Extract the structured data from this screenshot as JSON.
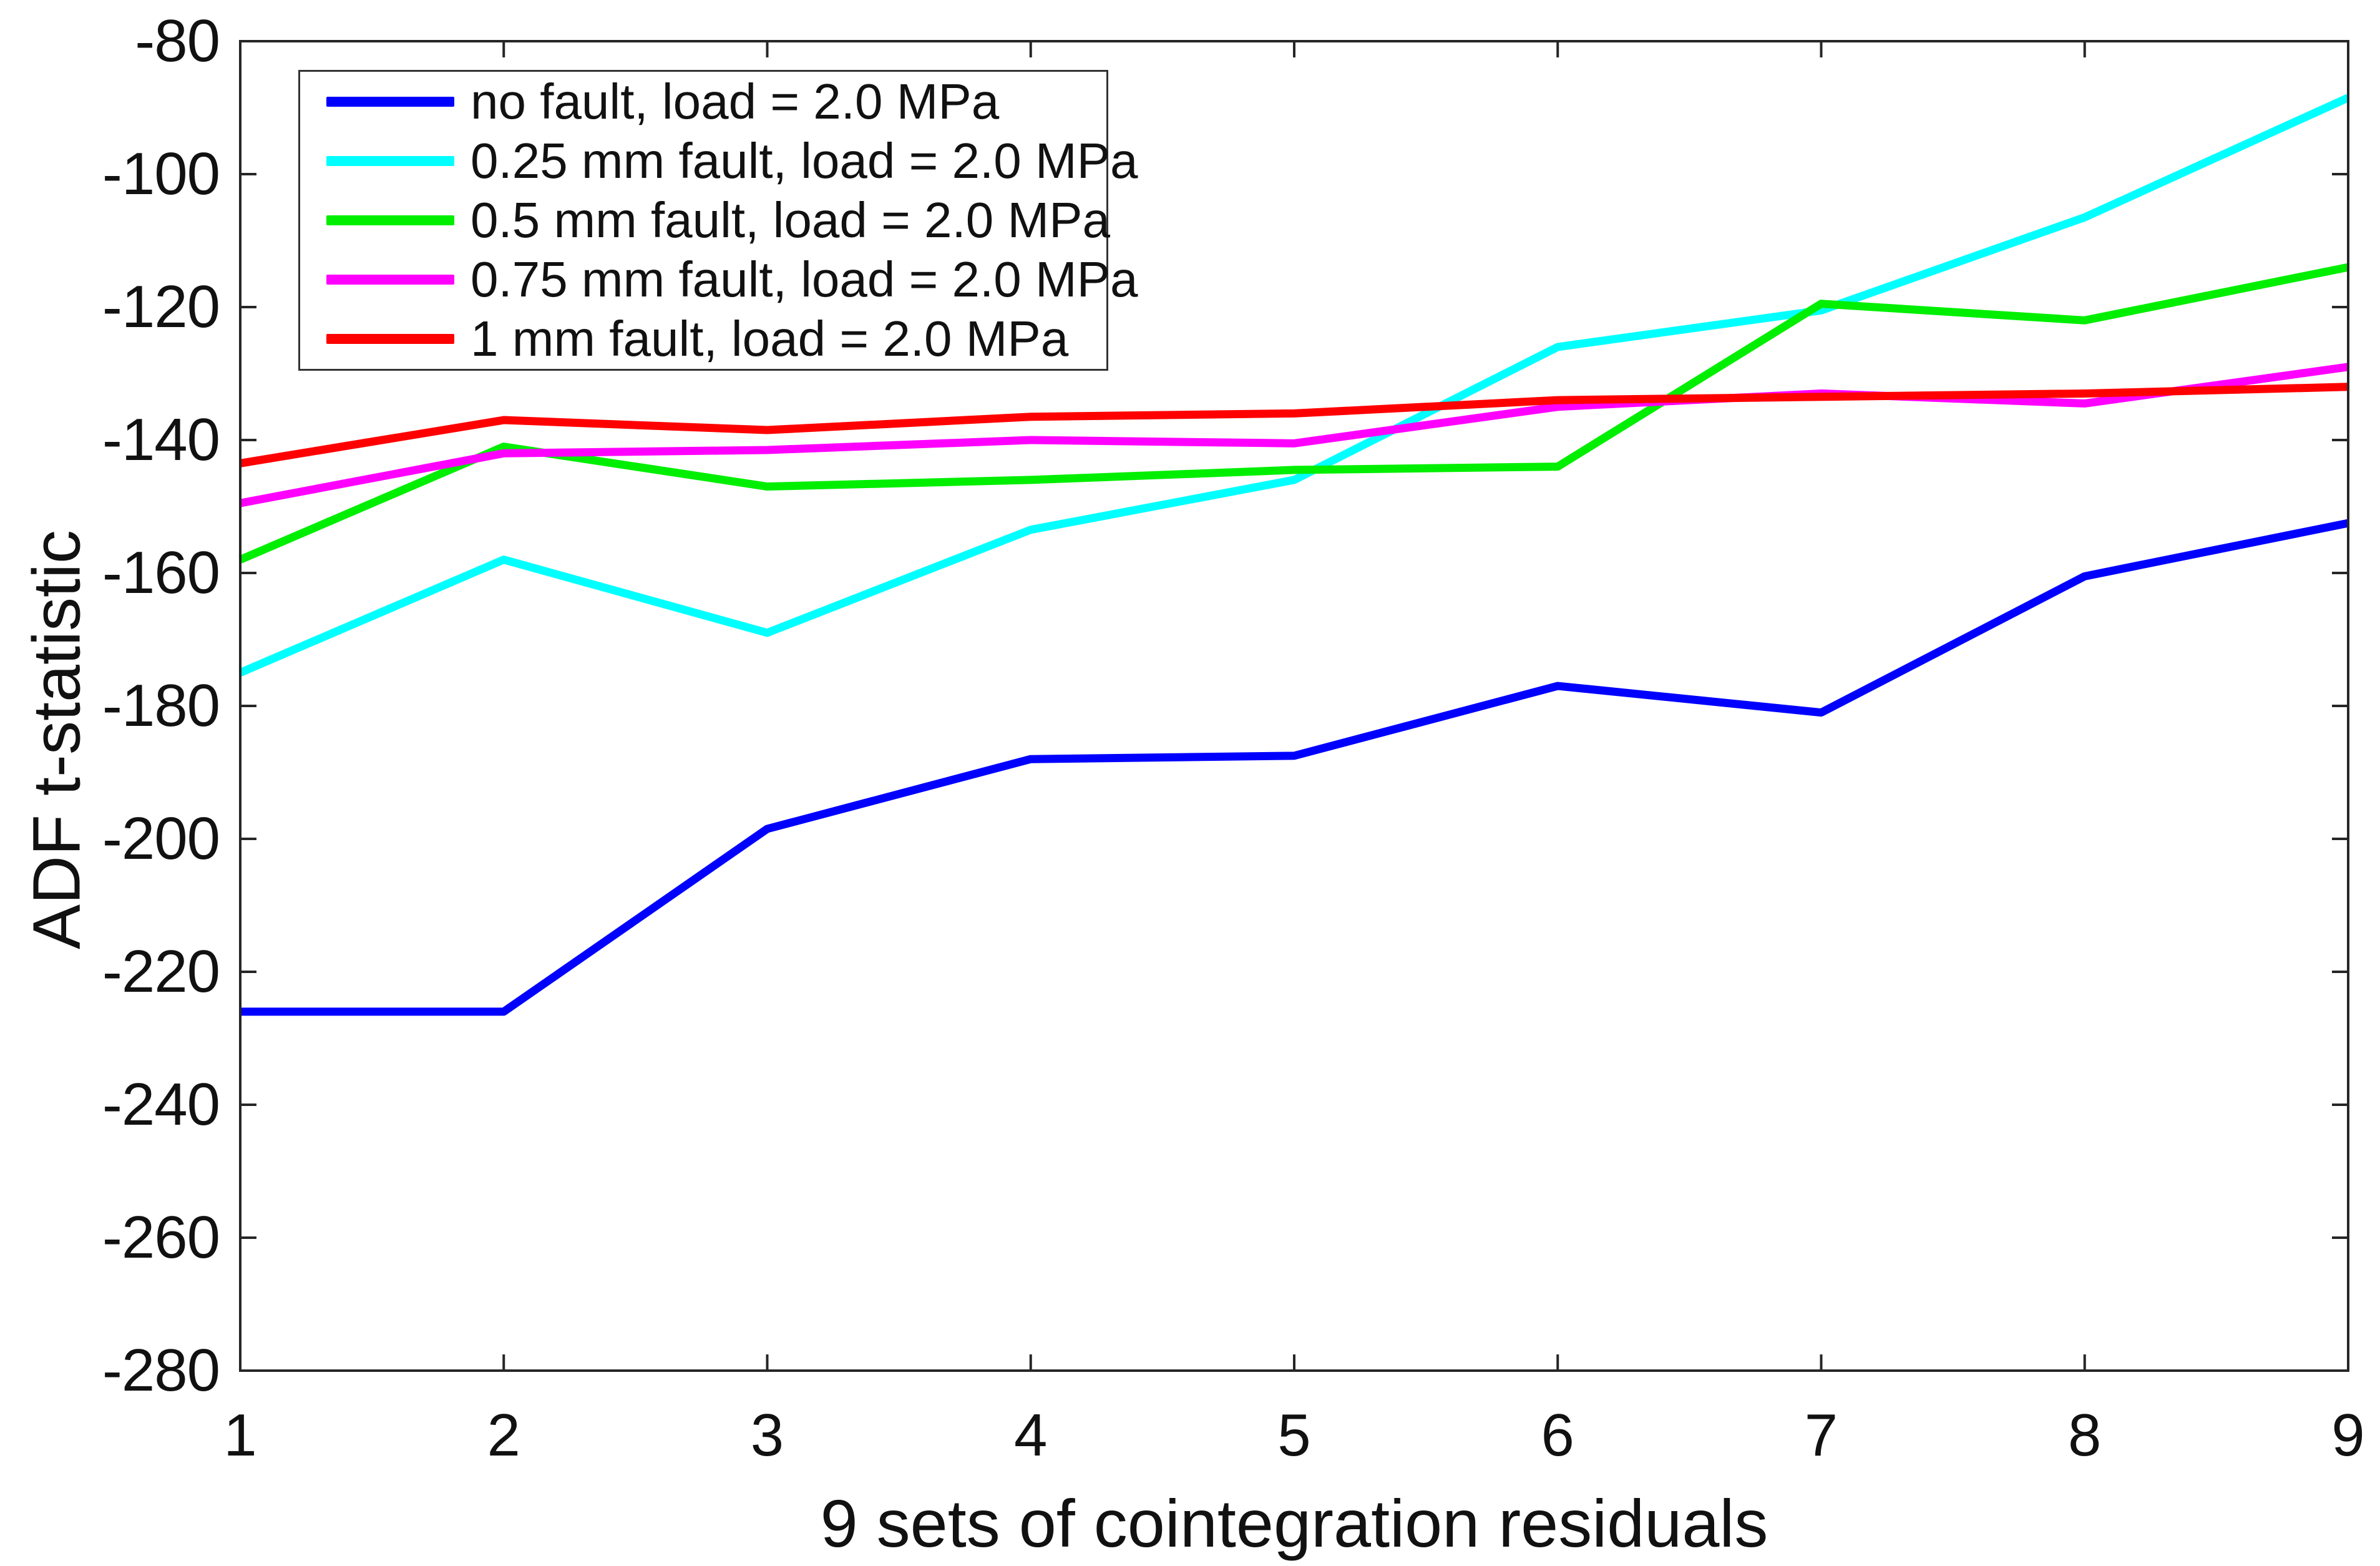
{
  "chart_data": {
    "type": "line",
    "title": "",
    "xlabel": "9 sets of cointegration residuals",
    "ylabel": "ADF t-statistic",
    "x": [
      1,
      2,
      3,
      4,
      5,
      6,
      7,
      8,
      9
    ],
    "xlim": [
      1,
      9
    ],
    "ylim": [
      -280,
      -80
    ],
    "x_tick_labels": [
      "1",
      "2",
      "3",
      "4",
      "5",
      "6",
      "7",
      "8",
      "9"
    ],
    "y_ticks": [
      -80,
      -100,
      -120,
      -140,
      -160,
      -180,
      -200,
      -220,
      -240,
      -260,
      -280
    ],
    "y_tick_labels": [
      "-80",
      "-100",
      "-120",
      "-140",
      "-160",
      "-180",
      "-200",
      "-220",
      "-240",
      "-260",
      "-280"
    ],
    "grid": false,
    "legend_position": "top-left-inside",
    "axis_color": "#262626",
    "line_width": 13,
    "series": [
      {
        "name": "no fault, load = 2.0 MPa",
        "color": "#0000ff",
        "values": [
          -226,
          -226,
          -198.5,
          -188,
          -187.5,
          -177,
          -181,
          -160.5,
          -152.5
        ]
      },
      {
        "name": "0.25 mm fault, load = 2.0 MPa",
        "color": "#00ffff",
        "values": [
          -175,
          -158,
          -169,
          -153.5,
          -146,
          -126,
          -120.5,
          -106.5,
          -88.5
        ]
      },
      {
        "name": "0.5 mm fault, load = 2.0 MPa",
        "color": "#00ee00",
        "values": [
          -158,
          -141,
          -147,
          -146,
          -144.5,
          -144,
          -119.5,
          -122,
          -114
        ]
      },
      {
        "name": "0.75 mm fault, load = 2.0 MPa",
        "color": "#ff00ff",
        "values": [
          -149.5,
          -142,
          -141.5,
          -140,
          -140.5,
          -135,
          -133,
          -134.5,
          -129
        ]
      },
      {
        "name": "1 mm fault, load = 2.0 MPa",
        "color": "#ff0000",
        "values": [
          -143.5,
          -137,
          -138.5,
          -136.5,
          -136,
          -134,
          -133.5,
          -133,
          -132
        ]
      }
    ]
  }
}
